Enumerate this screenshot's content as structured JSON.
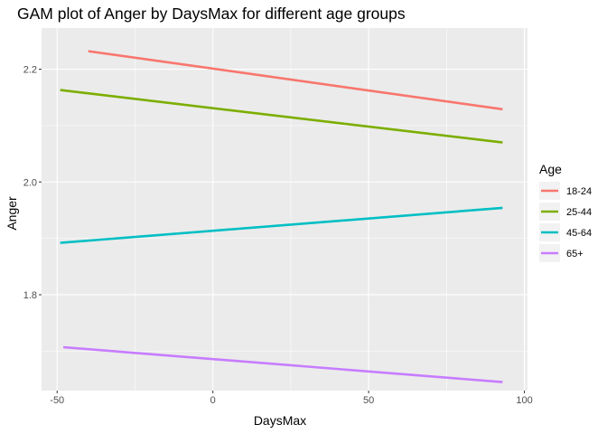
{
  "chart_data": {
    "type": "line",
    "title": "GAM plot of Anger by DaysMax for different age groups",
    "xlabel": "DaysMax",
    "ylabel": "Anger",
    "xlim": [
      -55,
      101
    ],
    "ylim": [
      1.63,
      2.273
    ],
    "x_ticks": [
      -50,
      0,
      50,
      100
    ],
    "x_tick_labels": [
      "-50",
      "0",
      "50",
      "100"
    ],
    "y_ticks": [
      1.8,
      2.0,
      2.2
    ],
    "y_tick_labels": [
      "1.8",
      "2.0",
      "2.2"
    ],
    "grid": true,
    "legend": {
      "title": "Age",
      "position": "right"
    },
    "series": [
      {
        "name": "18-24",
        "color": "#F8766D",
        "x": [
          -40,
          93
        ],
        "y": [
          2.232,
          2.129
        ]
      },
      {
        "name": "25-44",
        "color": "#7CAE00",
        "x": [
          -49,
          93
        ],
        "y": [
          2.163,
          2.07
        ]
      },
      {
        "name": "45-64",
        "color": "#00BFC4",
        "x": [
          -49,
          93
        ],
        "y": [
          1.892,
          1.954
        ]
      },
      {
        "name": "65+",
        "color": "#C77CFF",
        "x": [
          -48,
          93
        ],
        "y": [
          1.707,
          1.645
        ]
      }
    ]
  }
}
